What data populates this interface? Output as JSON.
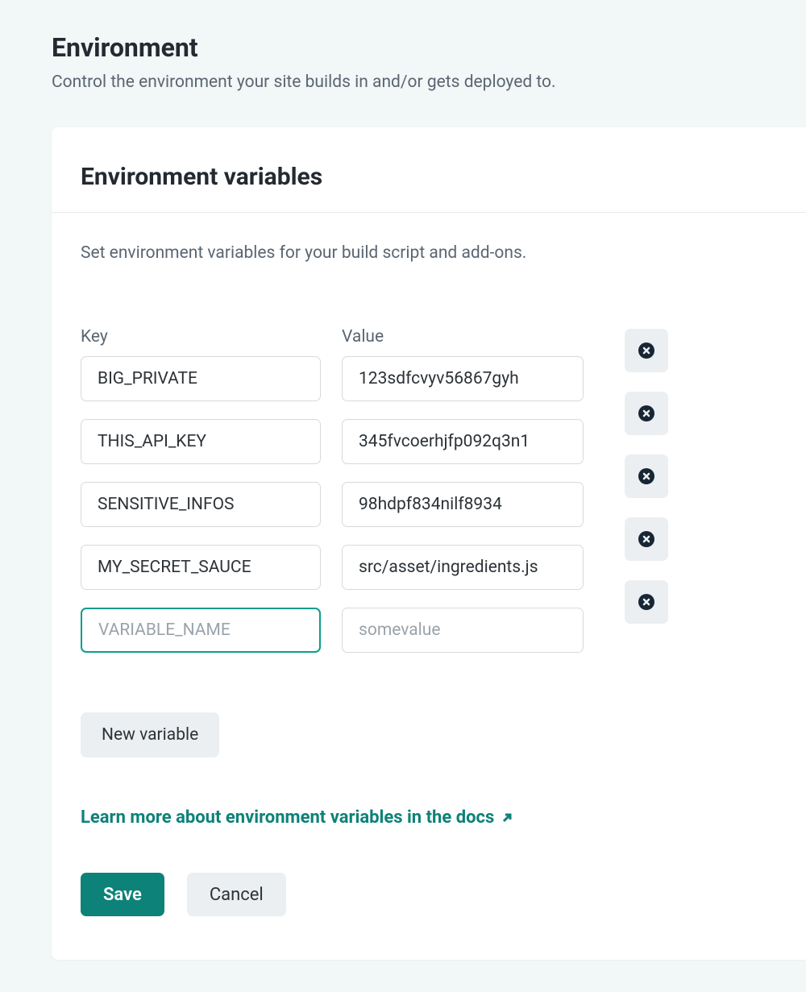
{
  "page": {
    "title": "Environment",
    "subtitle": "Control the environment your site builds in and/or gets deployed to."
  },
  "card": {
    "title": "Environment variables",
    "description": "Set environment variables for your build script and add-ons.",
    "labels": {
      "key": "Key",
      "value": "Value"
    },
    "placeholders": {
      "key": "VARIABLE_NAME",
      "value": "somevalue"
    },
    "variables": [
      {
        "key": "BIG_PRIVATE",
        "value": "123sdfcvyv56867gyh"
      },
      {
        "key": "THIS_API_KEY",
        "value": "345fvcoerhjfp092q3n1"
      },
      {
        "key": "SENSITIVE_INFOS",
        "value": "98hdpf834nilf8934"
      },
      {
        "key": "MY_SECRET_SAUCE",
        "value": "src/asset/ingredients.js"
      },
      {
        "key": "",
        "value": "",
        "focused": true
      }
    ],
    "new_variable_label": "New variable",
    "docs_link_text": "Learn more about environment variables in the docs",
    "save_label": "Save",
    "cancel_label": "Cancel"
  },
  "colors": {
    "page_bg": "#f2f7f7",
    "card_bg": "#ffffff",
    "text_primary": "#232a31",
    "text_secondary": "#5a6672",
    "border": "#d6dade",
    "accent": "#0d8278",
    "accent_focus": "#0d9d8e",
    "button_secondary_bg": "#eceff1",
    "delete_icon_fill": "#172635"
  }
}
